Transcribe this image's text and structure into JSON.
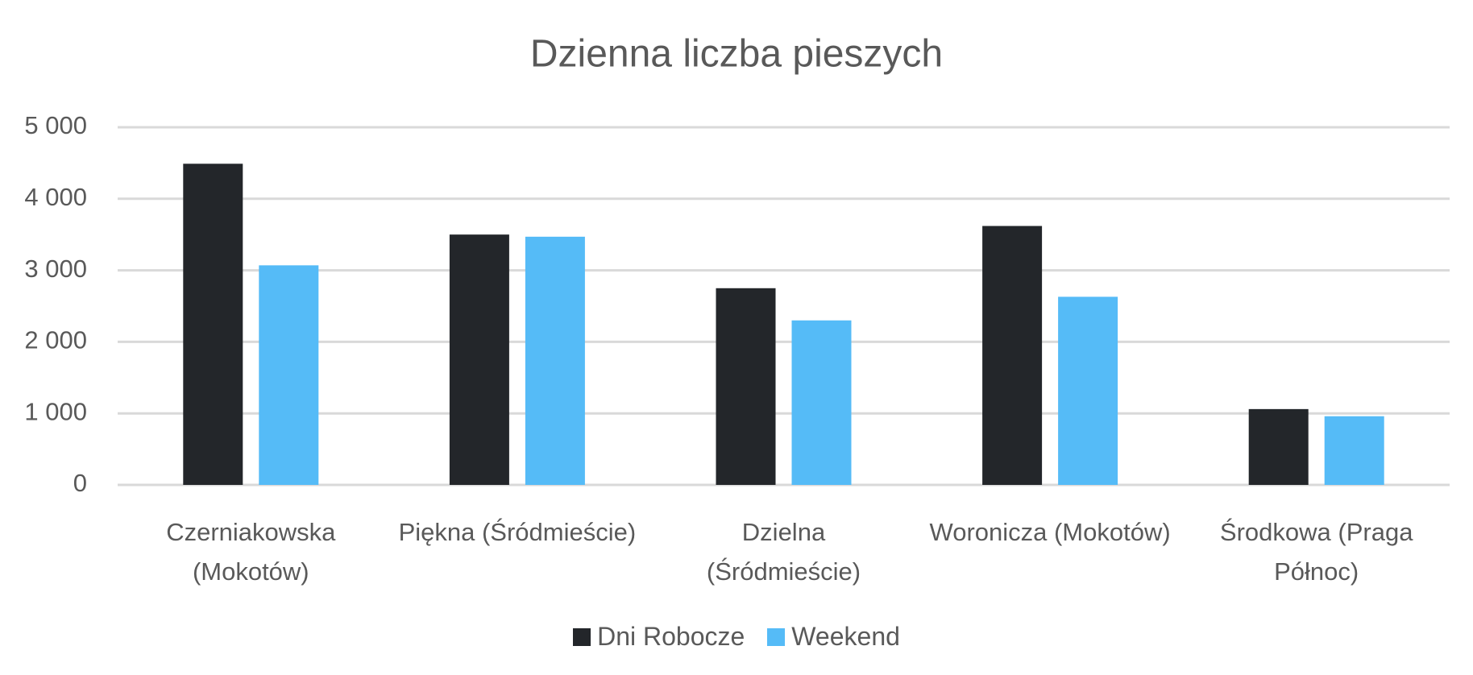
{
  "chart_data": {
    "type": "bar",
    "title": "Dzienna liczba pieszych",
    "categories": [
      "Czerniakowska (Mokotów)",
      "Piękna (Śródmieście)",
      "Dzielna (Śródmieście)",
      "Woronicza (Mokotów)",
      "Środkowa (Praga Północ)"
    ],
    "series": [
      {
        "name": "Dni Robocze",
        "color": "#23262a",
        "values": [
          4490,
          3500,
          2750,
          3620,
          1060
        ]
      },
      {
        "name": "Weekend",
        "color": "#55bbf7",
        "values": [
          3070,
          3470,
          2300,
          2630,
          960
        ]
      }
    ],
    "ylim": [
      0,
      5000
    ],
    "yticks": [
      {
        "value": 0,
        "label": "0"
      },
      {
        "value": 1000,
        "label": "1 000"
      },
      {
        "value": 2000,
        "label": "2 000"
      },
      {
        "value": 3000,
        "label": "3 000"
      },
      {
        "value": 4000,
        "label": "4 000"
      },
      {
        "value": 5000,
        "label": "5 000"
      }
    ],
    "grid": true,
    "legend": "bottom"
  }
}
